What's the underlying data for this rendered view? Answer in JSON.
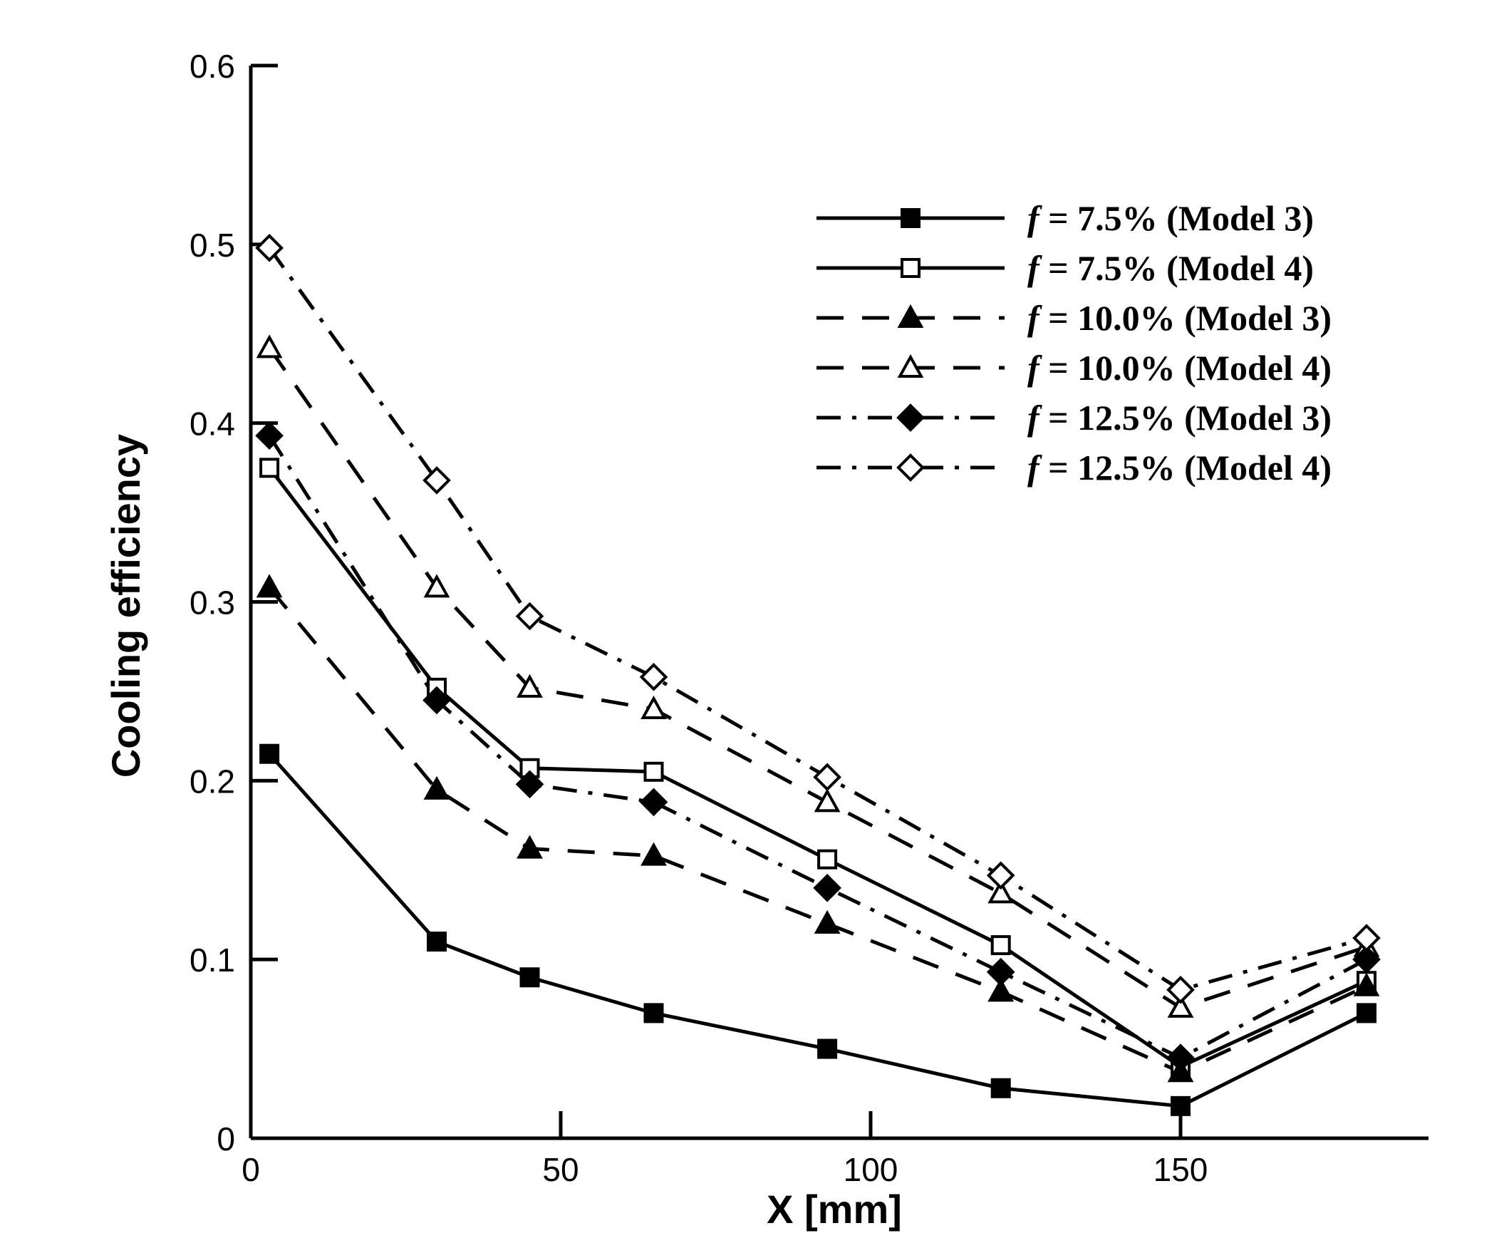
{
  "chart_data": {
    "type": "line",
    "xlabel": "X [mm]",
    "ylabel": "Cooling efficiency",
    "xlim": [
      0,
      190
    ],
    "ylim": [
      0,
      0.6
    ],
    "xticks": [
      0,
      50,
      100,
      150
    ],
    "xtick_labels": [
      "0",
      "50",
      "100",
      "150"
    ],
    "yticks": [
      0,
      0.1,
      0.2,
      0.3,
      0.4,
      0.5,
      0.6
    ],
    "ytick_labels": [
      "0",
      "0.1",
      "0.2",
      "0.3",
      "0.4",
      "0.5",
      "0.6"
    ],
    "x": [
      3,
      30,
      45,
      65,
      93,
      121,
      150,
      180
    ],
    "legend_position": "top-right",
    "series": [
      {
        "name": "f = 7.5% (Model 3)",
        "label_prefix": "f",
        "label_rest": " = 7.5% (Model 3)",
        "line": "solid",
        "marker": "square",
        "filled": true,
        "values": [
          0.215,
          0.11,
          0.09,
          0.07,
          0.05,
          0.028,
          0.018,
          0.07
        ]
      },
      {
        "name": "f = 7.5% (Model 4)",
        "label_prefix": "f",
        "label_rest": " = 7.5% (Model 4)",
        "line": "solid",
        "marker": "square",
        "filled": false,
        "values": [
          0.375,
          0.252,
          0.207,
          0.205,
          0.156,
          0.108,
          0.04,
          0.088
        ]
      },
      {
        "name": "f = 10.0% (Model 3)",
        "label_prefix": "f",
        "label_rest": " = 10.0% (Model 3)",
        "line": "dashed",
        "marker": "triangle",
        "filled": true,
        "values": [
          0.308,
          0.195,
          0.162,
          0.158,
          0.12,
          0.082,
          0.037,
          0.085
        ]
      },
      {
        "name": "f = 10.0% (Model 4)",
        "label_prefix": "f",
        "label_rest": " = 10.0% (Model 4)",
        "line": "dashed",
        "marker": "triangle",
        "filled": false,
        "values": [
          0.442,
          0.308,
          0.252,
          0.24,
          0.188,
          0.137,
          0.073,
          0.107
        ]
      },
      {
        "name": "f = 12.5% (Model 3)",
        "label_prefix": "f",
        "label_rest": " = 12.5% (Model 3)",
        "line": "dashdot",
        "marker": "diamond",
        "filled": true,
        "values": [
          0.393,
          0.245,
          0.198,
          0.188,
          0.14,
          0.093,
          0.045,
          0.1
        ]
      },
      {
        "name": "f = 12.5% (Model 4)",
        "label_prefix": "f",
        "label_rest": " = 12.5% (Model 4)",
        "line": "dashdot",
        "marker": "diamond",
        "filled": false,
        "values": [
          0.498,
          0.368,
          0.292,
          0.258,
          0.202,
          0.147,
          0.083,
          0.112
        ]
      }
    ]
  }
}
